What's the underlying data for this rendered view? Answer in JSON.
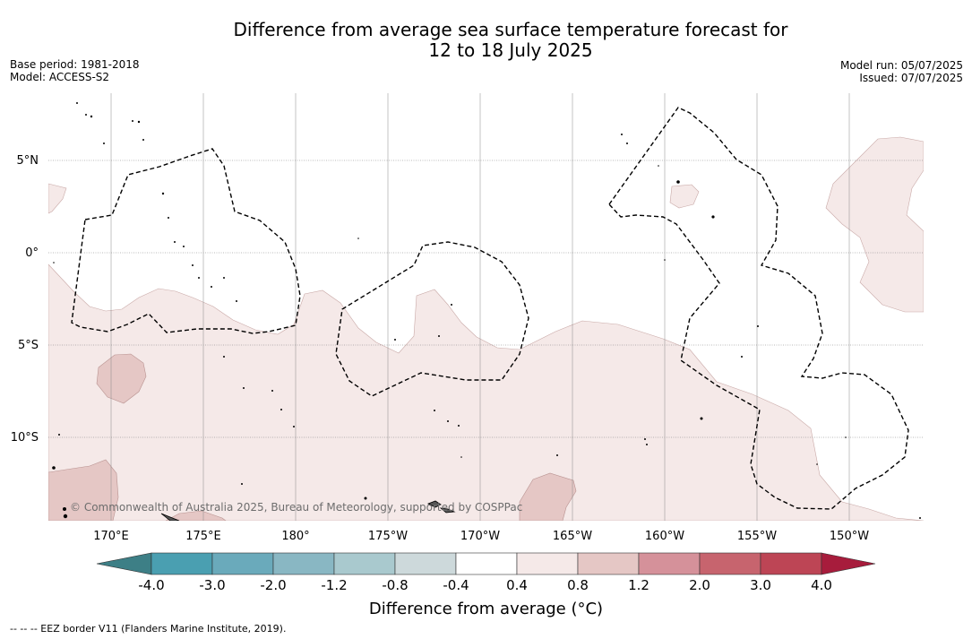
{
  "header": {
    "title_line1": "Difference from average sea surface temperature forecast for",
    "title_line2": "12 to 18 July 2025",
    "base_period": "Base period: 1981-2018",
    "model": "Model: ACCESS-S2",
    "model_run": "Model run: 05/07/2025",
    "issued": "Issued: 07/07/2025"
  },
  "map": {
    "credit": "© Commonwealth of Australia 2025, Bureau of Meteorology, supported by COSPPac",
    "lat_labels": [
      "5°N",
      "0°",
      "5°S",
      "10°S"
    ],
    "lon_labels": [
      "170°E",
      "175°E",
      "180°",
      "175°W",
      "170°W",
      "165°W",
      "160°W",
      "155°W",
      "150°W"
    ]
  },
  "colorbar": {
    "tick_labels": [
      "-4.0",
      "-3.0",
      "-2.0",
      "-1.2",
      "-0.8",
      "-0.4",
      "0.4",
      "0.8",
      "1.2",
      "2.0",
      "3.0",
      "4.0"
    ],
    "colors": [
      "#3d7f86",
      "#4a9fb1",
      "#6aaabb",
      "#89b7c3",
      "#a9c9ce",
      "#cdd9db",
      "#ffffff",
      "#f5e9e8",
      "#e5c7c5",
      "#d5919a",
      "#c7646e",
      "#bd4555",
      "#a71c3c"
    ],
    "title": "Difference from average (°C)"
  },
  "footnote": "--  --  -- EEZ border V11 (Flanders Marine Institute, 2019)."
}
